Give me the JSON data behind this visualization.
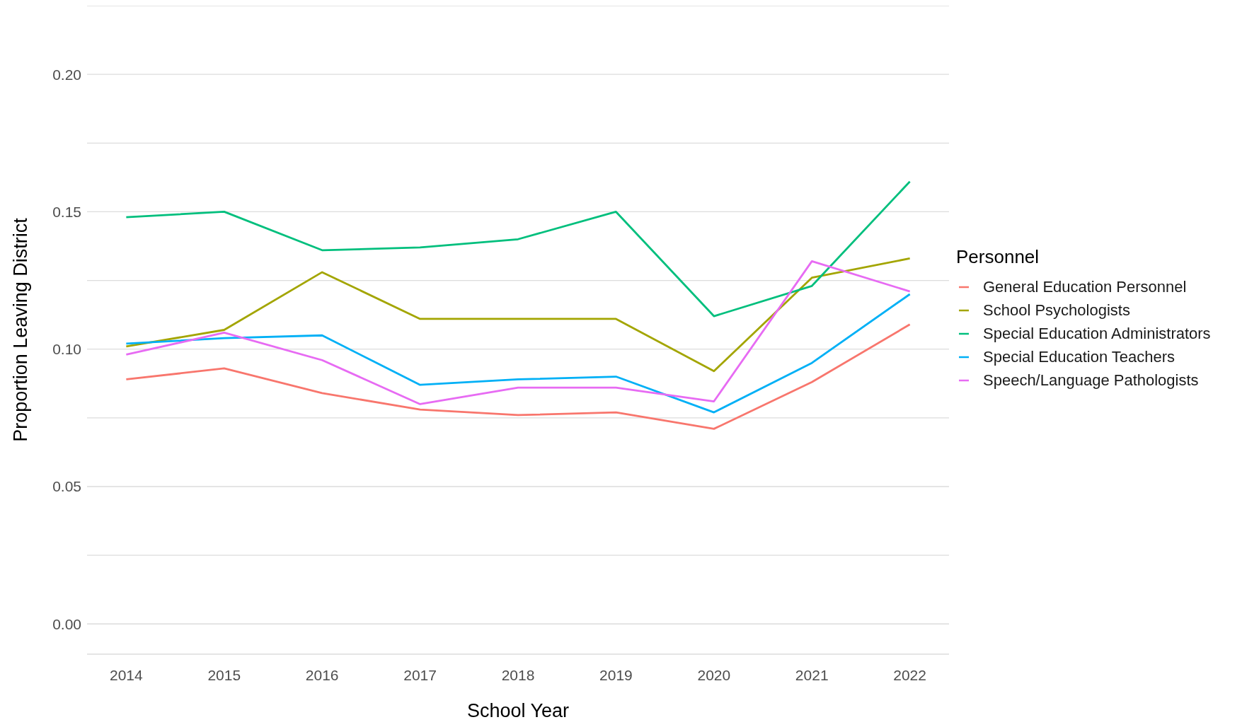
{
  "chart_data": {
    "type": "line",
    "xlabel": "School Year",
    "ylabel": "Proportion Leaving District",
    "legend_title": "Personnel",
    "x": [
      2014,
      2015,
      2016,
      2017,
      2018,
      2019,
      2020,
      2021,
      2022
    ],
    "xlim": [
      2013.6,
      2022.4
    ],
    "xticks": [
      2014,
      2015,
      2016,
      2017,
      2018,
      2019,
      2020,
      2021,
      2022
    ],
    "ylim": [
      -0.011,
      0.225
    ],
    "yticks": [
      {
        "value": 0,
        "label": "0.00"
      },
      {
        "value": 0.025,
        "label": null
      },
      {
        "value": 0.05,
        "label": "0.05"
      },
      {
        "value": 0.075,
        "label": null
      },
      {
        "value": 0.1,
        "label": "0.10"
      },
      {
        "value": 0.125,
        "label": null
      },
      {
        "value": 0.15,
        "label": "0.15"
      },
      {
        "value": 0.175,
        "label": null
      },
      {
        "value": 0.2,
        "label": "0.20"
      },
      {
        "value": 0.225,
        "label": null
      }
    ],
    "grid": "y",
    "legend": "right",
    "marker": "none",
    "line_style": "solid",
    "series": [
      {
        "name": "General Education Personnel",
        "color": "#f8766d",
        "values": [
          0.089,
          0.093,
          0.084,
          0.078,
          0.076,
          0.077,
          0.071,
          0.088,
          0.109
        ]
      },
      {
        "name": "School Psychologists",
        "color": "#a3a500",
        "values": [
          0.101,
          0.107,
          0.128,
          0.111,
          0.111,
          0.111,
          0.092,
          0.126,
          0.133
        ]
      },
      {
        "name": "Special Education Administrators",
        "color": "#00bf7d",
        "values": [
          0.148,
          0.15,
          0.136,
          0.137,
          0.14,
          0.15,
          0.112,
          0.123,
          0.161
        ]
      },
      {
        "name": "Special Education Teachers",
        "color": "#00b0f6",
        "values": [
          0.102,
          0.104,
          0.105,
          0.087,
          0.089,
          0.09,
          0.077,
          0.095,
          0.12
        ]
      },
      {
        "name": "Speech/Language Pathologists",
        "color": "#e76bf3",
        "values": [
          0.098,
          0.106,
          0.096,
          0.08,
          0.086,
          0.086,
          0.081,
          0.132,
          0.121
        ]
      }
    ]
  }
}
